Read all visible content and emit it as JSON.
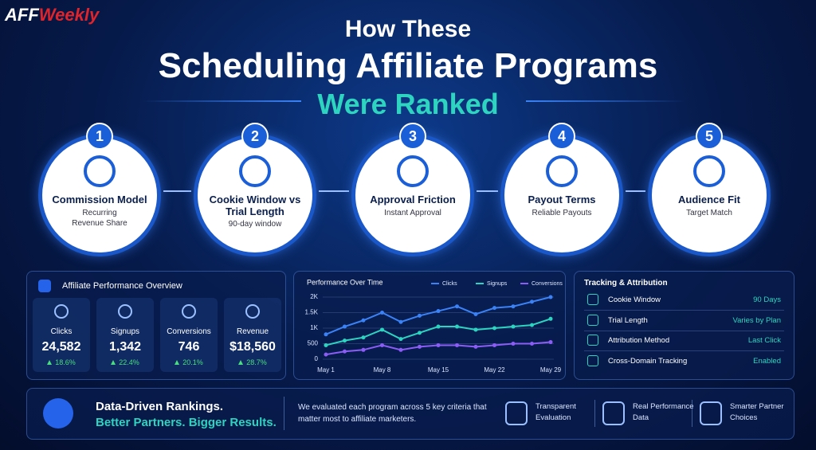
{
  "logo": {
    "part1": "AFF",
    "part2": "Weekly"
  },
  "header": {
    "line1": "How These",
    "line2": "Scheduling Affiliate Programs",
    "line3": "Were Ranked"
  },
  "steps": [
    {
      "number": "1",
      "title": "Commission Model",
      "subtitle": "Recurring Revenue Share"
    },
    {
      "number": "2",
      "title": "Cookie Window vs Trial Length",
      "subtitle": "90-day window"
    },
    {
      "number": "3",
      "title": "Approval Friction",
      "subtitle": "Instant Approval"
    },
    {
      "number": "4",
      "title": "Payout Terms",
      "subtitle": "Reliable Payouts"
    },
    {
      "number": "5",
      "title": "Audience Fit",
      "subtitle": "Target Match"
    }
  ],
  "overview": {
    "title": "Affiliate Performance Overview",
    "metrics": [
      {
        "label": "Clicks",
        "value": "24,582",
        "change": "18.6%"
      },
      {
        "label": "Signups",
        "value": "1,342",
        "change": "22.4%"
      },
      {
        "label": "Conversions",
        "value": "746",
        "change": "20.1%"
      },
      {
        "label": "Revenue",
        "value": "$18,560",
        "change": "28.7%"
      }
    ]
  },
  "chart_data": {
    "type": "line",
    "title": "Performance Over Time",
    "categories": [
      "May 1",
      null,
      null,
      "May 8",
      null,
      null,
      "May 15",
      null,
      null,
      "May 22",
      null,
      null,
      "May 29"
    ],
    "series": [
      {
        "name": "Clicks",
        "color": "#3b82f6",
        "values": [
          800,
          1050,
          1250,
          1500,
          1200,
          1400,
          1550,
          1700,
          1450,
          1650,
          1700,
          1850,
          2000
        ]
      },
      {
        "name": "Signups",
        "color": "#2dd4bf",
        "values": [
          450,
          600,
          700,
          950,
          650,
          850,
          1050,
          1050,
          950,
          1000,
          1050,
          1100,
          1300
        ]
      },
      {
        "name": "Conversions",
        "color": "#8b5cf6",
        "values": [
          150,
          250,
          300,
          450,
          300,
          400,
          450,
          450,
          400,
          450,
          500,
          500,
          550
        ]
      }
    ],
    "ylim": [
      0,
      2000
    ],
    "yticks": [
      0,
      500,
      {
        "value": 1000,
        "label": "1K"
      },
      {
        "value": 1500,
        "label": "1.5K"
      },
      {
        "value": 2000,
        "label": "2K"
      }
    ],
    "grid": true,
    "legend": "top"
  },
  "tracking": {
    "title": "Tracking & Attribution",
    "rows": [
      {
        "label": "Cookie Window",
        "value": "90 Days"
      },
      {
        "label": "Trial Length",
        "value": "Varies by Plan"
      },
      {
        "label": "Attribution Method",
        "value": "Last Click"
      },
      {
        "label": "Cross-Domain Tracking",
        "value": "Enabled"
      }
    ]
  },
  "banner": {
    "headline1": "Data-Driven Rankings.",
    "headline2": "Better Partners. Bigger Results.",
    "description": "We evaluated each program across 5 key criteria that matter most to affiliate marketers.",
    "features": [
      "Transparent Evaluation",
      "Real Performance Data",
      "Smarter Partner Choices"
    ]
  }
}
